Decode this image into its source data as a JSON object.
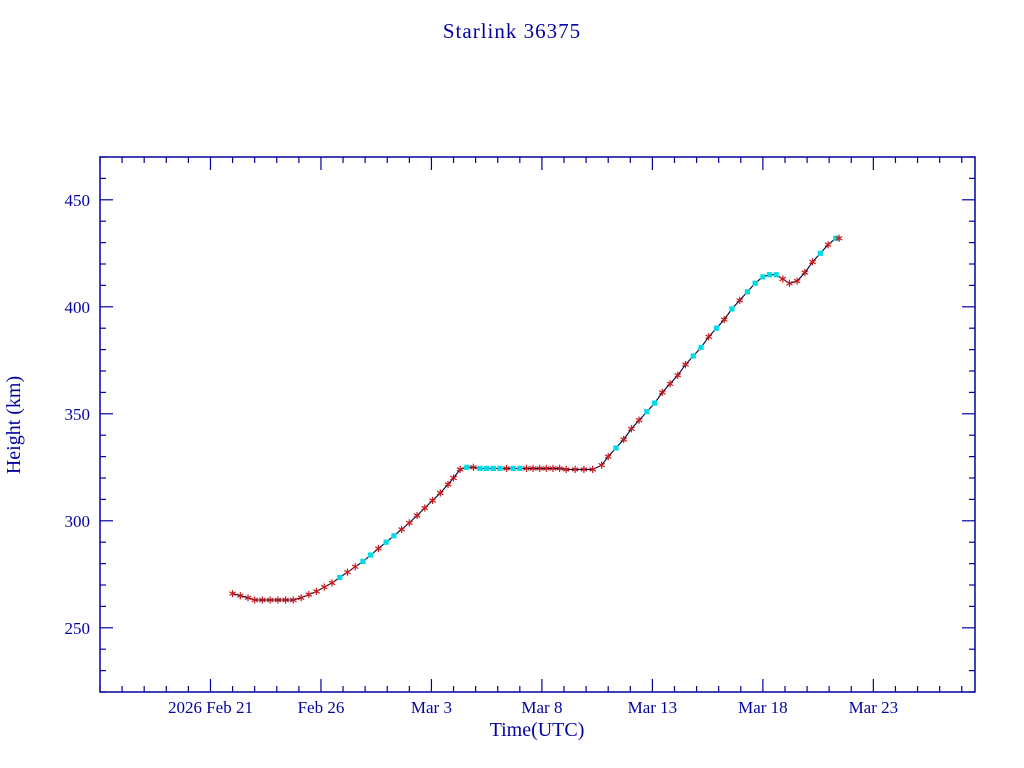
{
  "chart_data": {
    "type": "line",
    "title": "Starlink 36375",
    "xlabel": "Time(UTC)",
    "ylabel": "Height (km)",
    "x_unit": "days since 2026 Feb 21 00:00 UTC",
    "xlim": [
      -5,
      34.6
    ],
    "ylim": [
      220,
      470
    ],
    "x_major_ticks": [
      0,
      5,
      10,
      15,
      20,
      25,
      30
    ],
    "x_tick_labels": [
      "2026 Feb 21",
      "Feb 26",
      "Mar 3",
      "Mar 8",
      "Mar 13",
      "Mar 18",
      "Mar 23"
    ],
    "x_minor_tick_step": 1,
    "y_major_ticks": [
      250,
      300,
      350,
      400,
      450
    ],
    "y_minor_tick_step": 10,
    "grid": false,
    "legend": "none",
    "colors": {
      "axis": "#0202a0",
      "text": "#0202a0",
      "line": "#00003c",
      "red_marker": "#c41a1a",
      "cyan_marker": "#00dbe8",
      "background": "#ffffff"
    },
    "series": [
      {
        "name": "height",
        "marker_legend": {
          "r": "red-asterisk-observation",
          "c": "cyan-square-observation"
        },
        "points": [
          [
            1.0,
            266,
            "r"
          ],
          [
            1.35,
            265,
            "r"
          ],
          [
            1.7,
            264,
            "r"
          ],
          [
            2.0,
            263,
            "r"
          ],
          [
            2.35,
            263,
            "r"
          ],
          [
            2.7,
            263,
            "r"
          ],
          [
            3.05,
            263,
            "r"
          ],
          [
            3.4,
            263,
            "r"
          ],
          [
            3.75,
            263,
            "r"
          ],
          [
            4.1,
            264,
            "r"
          ],
          [
            4.45,
            265.5,
            "r"
          ],
          [
            4.8,
            267,
            "r"
          ],
          [
            5.15,
            269,
            "r"
          ],
          [
            5.5,
            271,
            "r"
          ],
          [
            5.85,
            273.5,
            "c"
          ],
          [
            6.2,
            276,
            "r"
          ],
          [
            6.55,
            278.5,
            "r"
          ],
          [
            6.9,
            281,
            "c"
          ],
          [
            7.25,
            284,
            "c"
          ],
          [
            7.6,
            287,
            "r"
          ],
          [
            7.95,
            290,
            "c"
          ],
          [
            8.3,
            293,
            "c"
          ],
          [
            8.65,
            296,
            "r"
          ],
          [
            9.0,
            299,
            "r"
          ],
          [
            9.35,
            302.5,
            "r"
          ],
          [
            9.7,
            306,
            "r"
          ],
          [
            10.05,
            309.5,
            "r"
          ],
          [
            10.4,
            313,
            "r"
          ],
          [
            10.75,
            317,
            "r"
          ],
          [
            11.0,
            320,
            "r"
          ],
          [
            11.3,
            324,
            "r"
          ],
          [
            11.6,
            325,
            "c"
          ],
          [
            11.9,
            325,
            "r"
          ],
          [
            12.2,
            324.5,
            "c"
          ],
          [
            12.5,
            324.5,
            "c"
          ],
          [
            12.8,
            324.5,
            "c"
          ],
          [
            13.1,
            324.5,
            "c"
          ],
          [
            13.4,
            324.5,
            "r"
          ],
          [
            13.7,
            324.5,
            "c"
          ],
          [
            14.0,
            324.5,
            "c"
          ],
          [
            14.3,
            324.5,
            "r"
          ],
          [
            14.6,
            324.5,
            "r"
          ],
          [
            14.9,
            324.5,
            "r"
          ],
          [
            15.2,
            324.5,
            "r"
          ],
          [
            15.5,
            324.5,
            "r"
          ],
          [
            15.8,
            324.5,
            "r"
          ],
          [
            16.1,
            324,
            "r"
          ],
          [
            16.5,
            324,
            "r"
          ],
          [
            16.9,
            324,
            "r"
          ],
          [
            17.3,
            324,
            "r"
          ],
          [
            17.7,
            326,
            "r"
          ],
          [
            18.0,
            330,
            "r"
          ],
          [
            18.35,
            334,
            "c"
          ],
          [
            18.7,
            338,
            "r"
          ],
          [
            19.05,
            343,
            "r"
          ],
          [
            19.4,
            347,
            "r"
          ],
          [
            19.75,
            351,
            "c"
          ],
          [
            20.1,
            355,
            "c"
          ],
          [
            20.45,
            360,
            "r"
          ],
          [
            20.8,
            364,
            "r"
          ],
          [
            21.15,
            368,
            "r"
          ],
          [
            21.5,
            373,
            "r"
          ],
          [
            21.85,
            377,
            "c"
          ],
          [
            22.2,
            381,
            "c"
          ],
          [
            22.55,
            386,
            "r"
          ],
          [
            22.9,
            390,
            "c"
          ],
          [
            23.25,
            394,
            "r"
          ],
          [
            23.6,
            399,
            "c"
          ],
          [
            23.95,
            403,
            "r"
          ],
          [
            24.3,
            407,
            "c"
          ],
          [
            24.65,
            411,
            "c"
          ],
          [
            25.0,
            414,
            "c"
          ],
          [
            25.3,
            415,
            "c"
          ],
          [
            25.6,
            415,
            "c"
          ],
          [
            25.9,
            413,
            "r"
          ],
          [
            26.2,
            411,
            "r"
          ],
          [
            26.55,
            412,
            "r"
          ],
          [
            26.9,
            416,
            "r"
          ],
          [
            27.25,
            421,
            "r"
          ],
          [
            27.6,
            425,
            "c"
          ],
          [
            27.95,
            429,
            "r"
          ],
          [
            28.3,
            432,
            "c"
          ],
          [
            28.45,
            432,
            "r"
          ]
        ]
      }
    ]
  }
}
